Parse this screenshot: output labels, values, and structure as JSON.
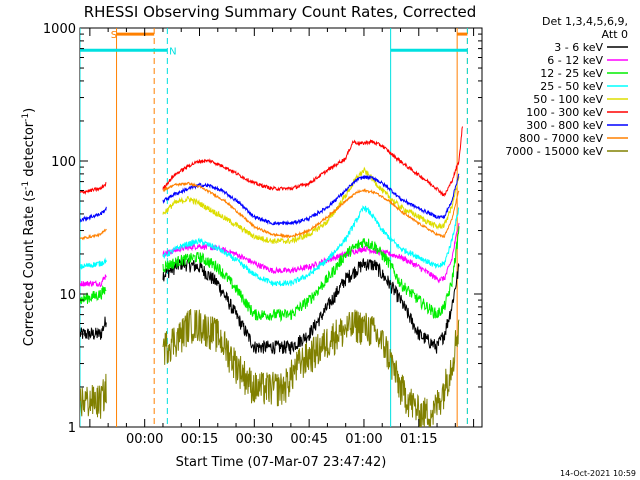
{
  "chart_data": {
    "type": "line",
    "title": "RHESSI Observing Summary Count Rates, Corrected",
    "ylabel": "Corrected Count Rate (s",
    "ylabel_sup1": "-1",
    "ylabel_mid": " detector",
    "ylabel_sup2": "-1",
    "ylabel_end": ")",
    "xlabel": "Start Time (07-Mar-07 23:47:42)",
    "y_scale": "log",
    "ylim": [
      1,
      1000
    ],
    "xlim_minutes": [
      -17.7,
      92.3
    ],
    "x_ticks": [
      {
        "minute": 0,
        "label": "00:00"
      },
      {
        "minute": 15,
        "label": "00:15"
      },
      {
        "minute": 30,
        "label": "00:30"
      },
      {
        "minute": 45,
        "label": "00:45"
      },
      {
        "minute": 60,
        "label": "01:00"
      },
      {
        "minute": 75,
        "label": "01:15"
      }
    ],
    "y_ticks": [
      {
        "value": 1,
        "label": "1"
      },
      {
        "value": 10,
        "label": "10"
      },
      {
        "value": 100,
        "label": "100"
      },
      {
        "value": 1000,
        "label": "1000"
      }
    ],
    "legend_header": [
      "Det 1,3,4,5,6,9,",
      "Att 0"
    ],
    "footer_date": "14-Oct-2021 10:59",
    "markers": [
      {
        "label": "S",
        "color": "#ff8000",
        "x_minutes": -8.4,
        "y": 900
      },
      {
        "label": "N",
        "color": "#00e0e0",
        "x_minutes": 7.7,
        "y": 680
      }
    ],
    "flag_bars": [
      {
        "name": "saa",
        "color": "#ff8000",
        "y": 900,
        "x_start": -7.7,
        "x_end": 2.6
      },
      {
        "name": "saa",
        "color": "#ff8000",
        "y": 900,
        "x_start": 85.5,
        "x_end": 88.3
      },
      {
        "name": "night",
        "color": "#00e0e0",
        "y": 680,
        "x_start": -17.7,
        "x_end": 6.2
      },
      {
        "name": "night",
        "color": "#00e0e0",
        "y": 680,
        "x_start": 67.3,
        "x_end": 88.3
      }
    ],
    "vlines": [
      {
        "color": "#ff8000",
        "x": -7.7,
        "style": "solid"
      },
      {
        "color": "#ff8000",
        "x": 2.6,
        "style": "dashed"
      },
      {
        "color": "#ff8000",
        "x": 85.5,
        "style": "solid"
      },
      {
        "color": "#ff8000",
        "x": 88.3,
        "style": "dashed"
      },
      {
        "color": "#00e0e0",
        "x": -17.7,
        "style": "solid"
      },
      {
        "color": "#00e0e0",
        "x": 6.2,
        "style": "dashed"
      },
      {
        "color": "#00e0e0",
        "x": 67.3,
        "style": "solid"
      },
      {
        "color": "#00e0e0",
        "x": 88.3,
        "style": "dashed"
      }
    ],
    "series": [
      {
        "name": "3 - 6 keV",
        "color": "#000000",
        "noise": 0.12,
        "segments": [
          [
            [
              -17.7,
              5
            ],
            [
              -12,
              5
            ],
            [
              -10.5,
              6.5
            ]
          ],
          [
            [
              5,
              14
            ],
            [
              10,
              17
            ],
            [
              15,
              16
            ],
            [
              20,
              12
            ],
            [
              25,
              7
            ],
            [
              30,
              4
            ],
            [
              40,
              4
            ],
            [
              45,
              5
            ],
            [
              50,
              8
            ],
            [
              55,
              13
            ],
            [
              60,
              17
            ],
            [
              63,
              16.5
            ],
            [
              67,
              12
            ],
            [
              70,
              9
            ],
            [
              75,
              5
            ],
            [
              80,
              4
            ],
            [
              82,
              5
            ],
            [
              84,
              8
            ],
            [
              86,
              16
            ]
          ]
        ]
      },
      {
        "name": "6 - 12 keV",
        "color": "#ff00ff",
        "noise": 0.05,
        "segments": [
          [
            [
              -17.7,
              12
            ],
            [
              -12,
              12
            ],
            [
              -10.5,
              14
            ]
          ],
          [
            [
              5,
              20
            ],
            [
              10,
              22
            ],
            [
              15,
              23
            ],
            [
              20,
              22
            ],
            [
              25,
              20
            ],
            [
              30,
              17
            ],
            [
              35,
              15
            ],
            [
              40,
              15
            ],
            [
              45,
              16
            ],
            [
              50,
              18
            ],
            [
              55,
              20
            ],
            [
              60,
              22
            ],
            [
              63,
              21
            ],
            [
              67,
              20
            ],
            [
              70,
              19
            ],
            [
              75,
              16
            ],
            [
              80,
              13
            ],
            [
              82,
              13
            ],
            [
              84,
              18
            ],
            [
              86,
              35
            ]
          ]
        ]
      },
      {
        "name": "12 - 25 keV",
        "color": "#00ee00",
        "noise": 0.1,
        "segments": [
          [
            [
              -17.7,
              9
            ],
            [
              -12,
              10
            ],
            [
              -10.5,
              11
            ]
          ],
          [
            [
              5,
              16
            ],
            [
              10,
              18
            ],
            [
              15,
              19
            ],
            [
              20,
              16
            ],
            [
              25,
              11
            ],
            [
              30,
              7
            ],
            [
              40,
              7
            ],
            [
              45,
              9
            ],
            [
              50,
              13
            ],
            [
              55,
              20
            ],
            [
              60,
              25
            ],
            [
              63,
              23
            ],
            [
              67,
              17
            ],
            [
              70,
              12
            ],
            [
              75,
              9
            ],
            [
              80,
              7
            ],
            [
              82,
              8
            ],
            [
              84,
              12
            ],
            [
              86,
              30
            ]
          ]
        ]
      },
      {
        "name": "25 - 50 keV",
        "color": "#00ffff",
        "noise": 0.05,
        "segments": [
          [
            [
              -17.7,
              16
            ],
            [
              -12,
              17
            ],
            [
              -10.5,
              18
            ]
          ],
          [
            [
              5,
              19
            ],
            [
              10,
              23
            ],
            [
              15,
              25
            ],
            [
              20,
              22
            ],
            [
              25,
              18
            ],
            [
              30,
              14
            ],
            [
              35,
              12
            ],
            [
              40,
              12
            ],
            [
              45,
              14
            ],
            [
              50,
              18
            ],
            [
              55,
              26
            ],
            [
              58,
              36
            ],
            [
              60,
              45
            ],
            [
              62,
              40
            ],
            [
              65,
              30
            ],
            [
              70,
              22
            ],
            [
              75,
              19
            ],
            [
              80,
              16
            ],
            [
              82,
              17
            ],
            [
              84,
              25
            ],
            [
              86,
              45
            ]
          ]
        ]
      },
      {
        "name": "50 - 100 keV",
        "color": "#dddd00",
        "noise": 0.05,
        "segments": [
          [
            [
              5,
              40
            ],
            [
              8,
              48
            ],
            [
              12,
              52
            ],
            [
              15,
              48
            ],
            [
              20,
              40
            ],
            [
              25,
              33
            ],
            [
              30,
              27
            ],
            [
              35,
              25
            ],
            [
              40,
              25
            ],
            [
              45,
              28
            ],
            [
              50,
              35
            ],
            [
              55,
              55
            ],
            [
              58,
              75
            ],
            [
              60,
              85
            ],
            [
              62,
              75
            ],
            [
              65,
              60
            ],
            [
              70,
              45
            ],
            [
              75,
              38
            ],
            [
              80,
              32
            ],
            [
              82,
              33
            ],
            [
              84,
              45
            ],
            [
              86,
              75
            ]
          ]
        ]
      },
      {
        "name": "100 - 300 keV",
        "color": "#ff0000",
        "noise": 0.03,
        "segments": [
          [
            [
              -17.7,
              58
            ],
            [
              -12,
              62
            ],
            [
              -10.5,
              68
            ]
          ],
          [
            [
              5,
              62
            ],
            [
              8,
              78
            ],
            [
              12,
              92
            ],
            [
              15,
              100
            ],
            [
              18,
              100
            ],
            [
              22,
              90
            ],
            [
              26,
              78
            ],
            [
              30,
              68
            ],
            [
              35,
              62
            ],
            [
              40,
              62
            ],
            [
              45,
              68
            ],
            [
              50,
              85
            ],
            [
              55,
              105
            ],
            [
              57,
              140
            ],
            [
              59,
              135
            ],
            [
              62,
              140
            ],
            [
              65,
              130
            ],
            [
              68,
              110
            ],
            [
              72,
              90
            ],
            [
              76,
              75
            ],
            [
              80,
              62
            ],
            [
              82,
              55
            ],
            [
              84,
              70
            ],
            [
              86,
              100
            ],
            [
              87,
              190
            ]
          ]
        ]
      },
      {
        "name": "300 - 800 keV",
        "color": "#0000ff",
        "noise": 0.03,
        "segments": [
          [
            [
              -17.7,
              36
            ],
            [
              -12,
              40
            ],
            [
              -10.5,
              44
            ]
          ],
          [
            [
              5,
              50
            ],
            [
              8,
              56
            ],
            [
              12,
              62
            ],
            [
              15,
              66
            ],
            [
              18,
              65
            ],
            [
              22,
              58
            ],
            [
              26,
              48
            ],
            [
              30,
              38
            ],
            [
              35,
              34
            ],
            [
              40,
              34
            ],
            [
              45,
              37
            ],
            [
              50,
              45
            ],
            [
              55,
              60
            ],
            [
              58,
              72
            ],
            [
              60,
              76
            ],
            [
              63,
              74
            ],
            [
              67,
              62
            ],
            [
              70,
              52
            ],
            [
              75,
              44
            ],
            [
              80,
              38
            ],
            [
              82,
              38
            ],
            [
              84,
              50
            ],
            [
              86,
              80
            ]
          ]
        ]
      },
      {
        "name": "800 - 7000 keV",
        "color": "#ff8000",
        "noise": 0.02,
        "segments": [
          [
            [
              -17.7,
              26
            ],
            [
              -12,
              28
            ],
            [
              -10.5,
              31
            ]
          ],
          [
            [
              5,
              60
            ],
            [
              8,
              66
            ],
            [
              12,
              68
            ],
            [
              15,
              64
            ],
            [
              18,
              58
            ],
            [
              22,
              50
            ],
            [
              26,
              40
            ],
            [
              30,
              32
            ],
            [
              35,
              28
            ],
            [
              40,
              27
            ],
            [
              45,
              30
            ],
            [
              50,
              38
            ],
            [
              55,
              50
            ],
            [
              58,
              58
            ],
            [
              60,
              60
            ],
            [
              63,
              58
            ],
            [
              67,
              50
            ],
            [
              70,
              42
            ],
            [
              75,
              34
            ],
            [
              80,
              28
            ],
            [
              82,
              27
            ],
            [
              84,
              36
            ],
            [
              86,
              60
            ]
          ]
        ]
      },
      {
        "name": "7000 - 15000 keV",
        "color": "#808000",
        "noise": 0.3,
        "segments": [
          [
            [
              -17.7,
              1.6
            ],
            [
              -12,
              1.6
            ],
            [
              -10.5,
              2
            ]
          ],
          [
            [
              5,
              4
            ],
            [
              10,
              5
            ],
            [
              12,
              6
            ],
            [
              15,
              6
            ],
            [
              20,
              5
            ],
            [
              25,
              3
            ],
            [
              30,
              2
            ],
            [
              38,
              2
            ],
            [
              42,
              3
            ],
            [
              48,
              4
            ],
            [
              52,
              5
            ],
            [
              58,
              6
            ],
            [
              62,
              5.5
            ],
            [
              66,
              4
            ],
            [
              70,
              2
            ],
            [
              75,
              1.3
            ],
            [
              79,
              1.3
            ],
            [
              82,
              2
            ],
            [
              84,
              3
            ],
            [
              86,
              6
            ]
          ]
        ]
      }
    ]
  }
}
